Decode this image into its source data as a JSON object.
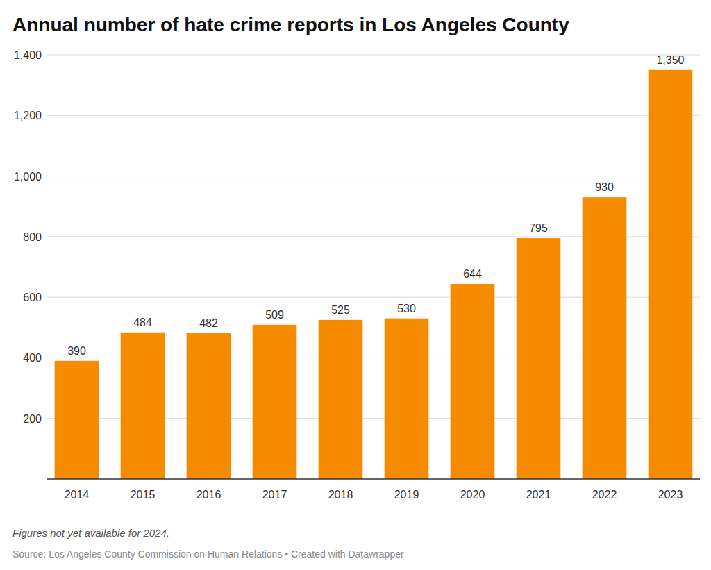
{
  "chart_data": {
    "type": "bar",
    "title": "Annual number of hate crime reports in Los Angeles County",
    "categories": [
      "2014",
      "2015",
      "2016",
      "2017",
      "2018",
      "2019",
      "2020",
      "2021",
      "2022",
      "2023"
    ],
    "values": [
      390,
      484,
      482,
      509,
      525,
      530,
      644,
      795,
      930,
      1350
    ],
    "value_labels": [
      "390",
      "484",
      "482",
      "509",
      "525",
      "530",
      "644",
      "795",
      "930",
      "1,350"
    ],
    "color": "#f68b00",
    "ylim": [
      0,
      1400
    ],
    "yticks": [
      200,
      400,
      600,
      800,
      {
        "value": 1000,
        "label": "1,000"
      },
      {
        "value": 1200,
        "label": "1,200"
      },
      {
        "value": 1400,
        "label": "1,400"
      }
    ],
    "grid": true,
    "data_labels": true,
    "notes": "Figures not yet available for 2024.",
    "source": "Source: Los Angeles County Commission on Human Relations • Created with Datawrapper"
  }
}
